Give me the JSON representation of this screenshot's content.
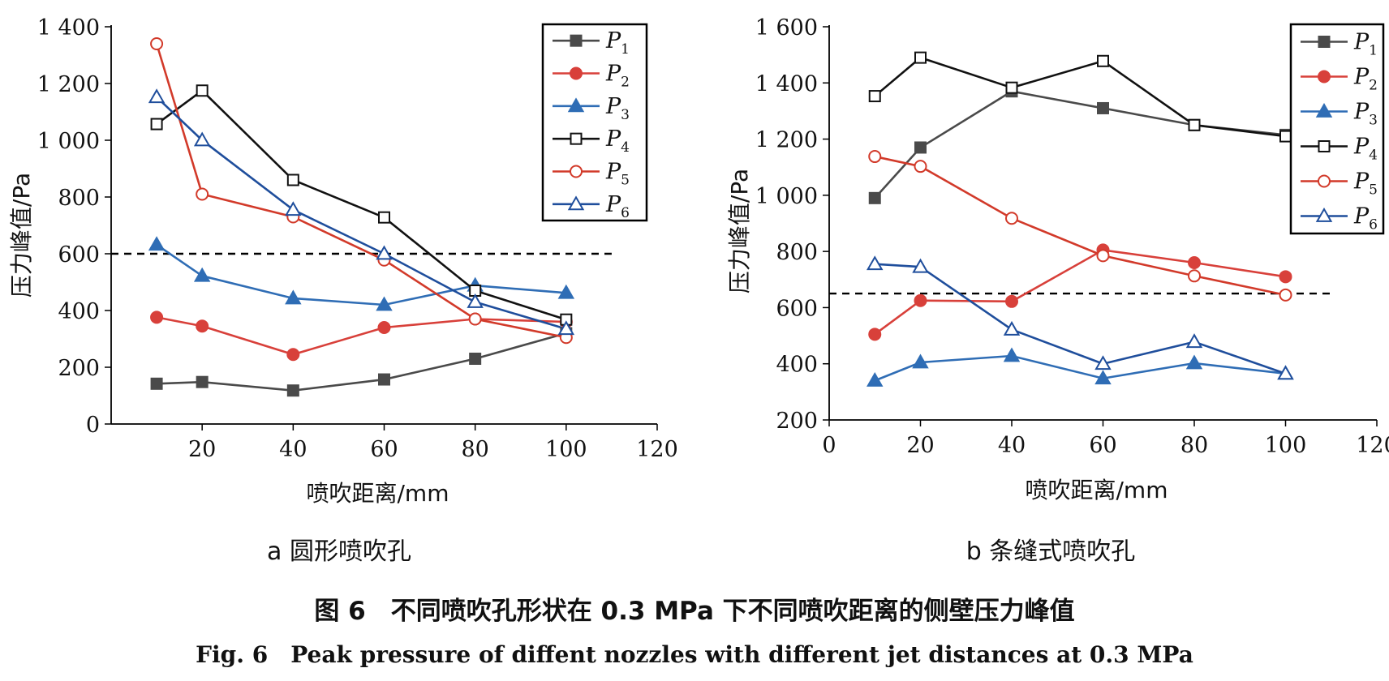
{
  "colors": {
    "P1": "#4a4a4a",
    "P2": "#d8403a",
    "P3": "#2f6db5",
    "P4": "#111111",
    "P5": "#d23a2a",
    "P6": "#1f4e9c",
    "reference": "#000000"
  },
  "caption": {
    "cn": "图 6　不同喷吹孔形状在 0.3 MPa 下不同喷吹距离的侧壁压力峰值",
    "en": "Fig. 6　Peak pressure of diffent nozzles with different jet distances at 0.3 MPa"
  },
  "chart_data": [
    {
      "type": "line",
      "subtitle": "a 圆形喷吹孔",
      "xlabel": "喷吹距离/mm",
      "ylabel": "压力峰值/Pa",
      "xlim": [
        0,
        120
      ],
      "ylim": [
        0,
        1400
      ],
      "xticks": [
        20,
        40,
        60,
        80,
        100,
        120
      ],
      "yticks": [
        0,
        200,
        400,
        600,
        800,
        1000,
        1200,
        1400
      ],
      "ytick_labels": [
        "0",
        "200",
        "400",
        "600",
        "800",
        "1 000",
        "1 200",
        "1 400"
      ],
      "reference_line": {
        "y": 600,
        "x_range": [
          0,
          110
        ],
        "style": "dashed"
      },
      "legend_position": "top-right",
      "grid": false,
      "series": [
        {
          "name": "P1",
          "marker": "square-filled",
          "x": [
            10,
            20,
            40,
            60,
            80,
            100
          ],
          "y": [
            142,
            148,
            118,
            157,
            230,
            320
          ]
        },
        {
          "name": "P2",
          "marker": "circle-filled",
          "x": [
            10,
            20,
            40,
            60,
            80,
            100
          ],
          "y": [
            376,
            345,
            245,
            340,
            370,
            360
          ]
        },
        {
          "name": "P3",
          "marker": "triangle-filled",
          "x": [
            10,
            20,
            40,
            60,
            80,
            100
          ],
          "y": [
            632,
            522,
            443,
            420,
            488,
            462
          ]
        },
        {
          "name": "P4",
          "marker": "square-open",
          "x": [
            10,
            20,
            40,
            60,
            80,
            100
          ],
          "y": [
            1057,
            1175,
            860,
            728,
            470,
            368
          ]
        },
        {
          "name": "P5",
          "marker": "circle-open",
          "x": [
            10,
            20,
            40,
            60,
            80,
            100
          ],
          "y": [
            1340,
            810,
            730,
            578,
            370,
            305
          ]
        },
        {
          "name": "P6",
          "marker": "triangle-open",
          "x": [
            10,
            20,
            40,
            60,
            80,
            100
          ],
          "y": [
            1152,
            1000,
            755,
            600,
            430,
            335
          ]
        }
      ]
    },
    {
      "type": "line",
      "subtitle": "b 条缝式喷吹孔",
      "xlabel": "喷吹距离/mm",
      "ylabel": "压力峰值/Pa",
      "xlim": [
        0,
        120
      ],
      "ylim": [
        200,
        1600
      ],
      "xticks": [
        0,
        20,
        40,
        60,
        80,
        100,
        120
      ],
      "yticks": [
        200,
        400,
        600,
        800,
        1000,
        1200,
        1400,
        1600
      ],
      "ytick_labels": [
        "200",
        "400",
        "600",
        "800",
        "1 000",
        "1 200",
        "1 400",
        "1 600"
      ],
      "reference_line": {
        "y": 650,
        "x_range": [
          0,
          110
        ],
        "style": "dashed"
      },
      "legend_position": "top-right",
      "grid": false,
      "series": [
        {
          "name": "P1",
          "marker": "square-filled",
          "x": [
            10,
            20,
            40,
            60,
            80,
            100
          ],
          "y": [
            990,
            1170,
            1370,
            1310,
            1250,
            1215
          ]
        },
        {
          "name": "P2",
          "marker": "circle-filled",
          "x": [
            10,
            20,
            40,
            60,
            80,
            100
          ],
          "y": [
            505,
            625,
            622,
            805,
            760,
            710
          ]
        },
        {
          "name": "P3",
          "marker": "triangle-filled",
          "x": [
            10,
            20,
            40,
            60,
            80,
            100
          ],
          "y": [
            340,
            405,
            428,
            348,
            402,
            365
          ]
        },
        {
          "name": "P4",
          "marker": "square-open",
          "x": [
            10,
            20,
            40,
            60,
            80,
            100
          ],
          "y": [
            1353,
            1490,
            1383,
            1478,
            1250,
            1210
          ]
        },
        {
          "name": "P5",
          "marker": "circle-open",
          "x": [
            10,
            20,
            40,
            60,
            80,
            100
          ],
          "y": [
            1138,
            1103,
            918,
            785,
            713,
            645
          ]
        },
        {
          "name": "P6",
          "marker": "triangle-open",
          "x": [
            10,
            20,
            40,
            60,
            80,
            100
          ],
          "y": [
            755,
            745,
            522,
            400,
            478,
            365
          ]
        }
      ]
    }
  ]
}
